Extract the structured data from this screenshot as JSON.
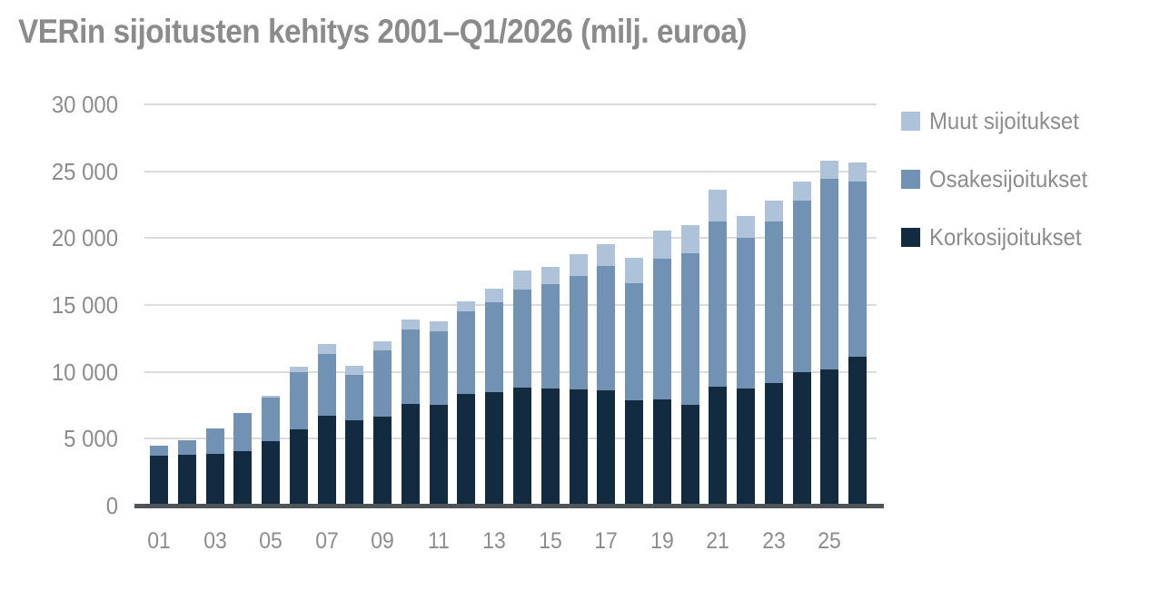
{
  "chart_data": {
    "type": "bar",
    "stacked": true,
    "title": "VERin sijoitusten kehitys 2001–Q1/2026 (milj. euroa)",
    "categories": [
      "2001",
      "2002",
      "2003",
      "2004",
      "2005",
      "2006",
      "2007",
      "2008",
      "2009",
      "2010",
      "2011",
      "2012",
      "2013",
      "2014",
      "2015",
      "2016",
      "2017",
      "2018",
      "2019",
      "2020",
      "2021",
      "2022",
      "2023",
      "2024",
      "2025",
      "Q1/2026"
    ],
    "series": [
      {
        "name": "Korkosijoitukset",
        "color": "#132B40",
        "values": [
          3750,
          3800,
          3900,
          4050,
          4850,
          5700,
          6750,
          6400,
          6650,
          7600,
          7550,
          8350,
          8500,
          8850,
          8750,
          8700,
          8600,
          7850,
          7950,
          7550,
          8900,
          8750,
          9150,
          10000,
          10150,
          11100
        ]
      },
      {
        "name": "Osakesijoitukset",
        "color": "#7292B4",
        "values": [
          750,
          1100,
          1900,
          2850,
          3200,
          4250,
          4600,
          3350,
          4950,
          5550,
          5450,
          6150,
          6700,
          7300,
          7800,
          8500,
          9300,
          8750,
          10500,
          11300,
          12350,
          11250,
          12100,
          12800,
          14300,
          13100
        ]
      },
      {
        "name": "Muut sijoitukset",
        "color": "#AEC2D9",
        "values": [
          0,
          0,
          0,
          0,
          150,
          450,
          700,
          700,
          700,
          750,
          800,
          800,
          1050,
          1400,
          1300,
          1600,
          1650,
          1900,
          2100,
          2100,
          2350,
          1650,
          1550,
          1400,
          1350,
          1450
        ]
      }
    ],
    "totals": [
      4500,
      4900,
      5800,
      6900,
      8200,
      10400,
      12050,
      10450,
      12300,
      13900,
      13800,
      15300,
      16250,
      17550,
      17850,
      18800,
      19550,
      18500,
      20550,
      20950,
      23600,
      21650,
      22800,
      24200,
      25800,
      25650
    ],
    "legend": [
      {
        "label": "Muut sijoitukset",
        "color": "#AEC2D9"
      },
      {
        "label": "Osakesijoitukset",
        "color": "#7292B4"
      },
      {
        "label": "Korkosijoitukset",
        "color": "#132B40"
      }
    ],
    "legend_position": "top-right",
    "x_tick_labels": [
      "01",
      "03",
      "05",
      "07",
      "09",
      "11",
      "13",
      "15",
      "17",
      "19",
      "21",
      "23",
      "25"
    ],
    "y_ticks": [
      {
        "label": "0",
        "value": 0
      },
      {
        "label": "5 000",
        "value": 5000
      },
      {
        "label": "10 000",
        "value": 10000
      },
      {
        "label": "15 000",
        "value": 15000
      },
      {
        "label": "20 000",
        "value": 20000
      },
      {
        "label": "25 000",
        "value": 25000
      },
      {
        "label": "30 000",
        "value": 30000
      }
    ],
    "ylim": [
      0,
      30000
    ],
    "grid": "horizontal",
    "colors": {
      "label_text": "#8C8C8C",
      "gridline": "#DBDBDB",
      "axis_line": "#4E5458",
      "background": "#FFFFFF"
    }
  }
}
